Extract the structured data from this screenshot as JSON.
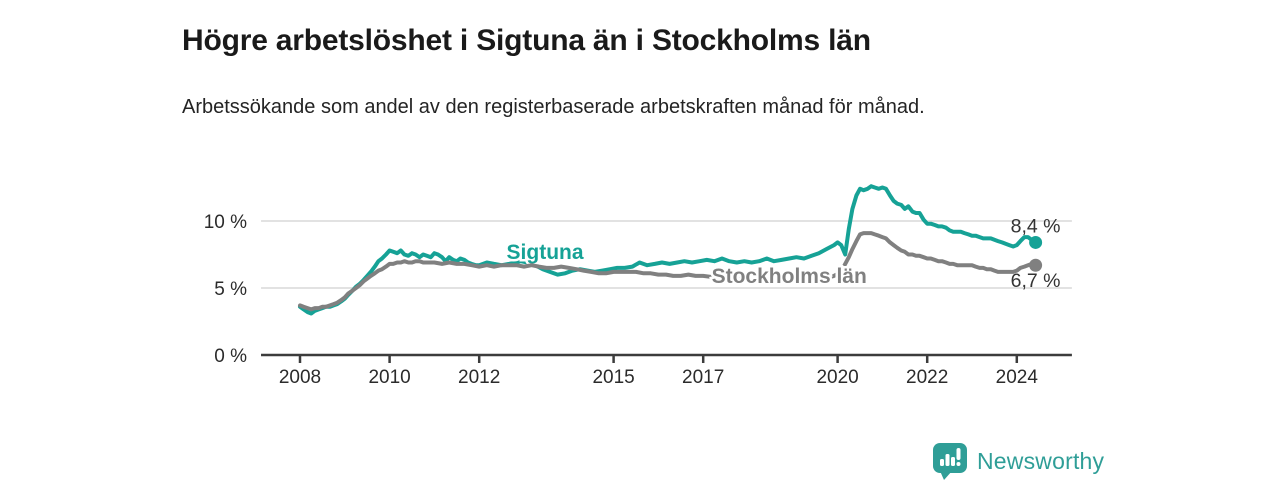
{
  "header": {
    "title": "Högre arbetslöshet i Sigtuna än i Stockholms län",
    "subtitle": "Arbetssökande som andel av den registerbaserade arbetskraften månad för månad."
  },
  "chart_data": {
    "type": "line",
    "title": "Högre arbetslöshet i Sigtuna än i Stockholms län",
    "subtitle": "Arbetssökande som andel av den registerbaserade arbetskraften månad för månad.",
    "unit": "%",
    "grid": true,
    "legend_position": "inline-labels",
    "x_axis": {
      "ticks": [
        2008,
        2010,
        2012,
        2015,
        2017,
        2020,
        2022,
        2024
      ],
      "range": [
        2007.13,
        2025.23
      ]
    },
    "y_axis": {
      "ticks": [
        0,
        5,
        10
      ],
      "tick_labels": [
        "0 %",
        "5 %",
        "10 %"
      ],
      "gridlines": [
        5,
        10
      ],
      "range": [
        0,
        13.2
      ]
    },
    "series": [
      {
        "name": "Sigtuna",
        "color": "#16a296",
        "end_label": "8,4 %",
        "end_value": 8.4,
        "label_anchor": [
          2013.47,
          7.16
        ],
        "points": [
          [
            2008.0,
            3.6
          ],
          [
            2008.08,
            3.4
          ],
          [
            2008.17,
            3.2
          ],
          [
            2008.25,
            3.1
          ],
          [
            2008.33,
            3.3
          ],
          [
            2008.42,
            3.4
          ],
          [
            2008.5,
            3.5
          ],
          [
            2008.58,
            3.6
          ],
          [
            2008.67,
            3.6
          ],
          [
            2008.75,
            3.7
          ],
          [
            2008.83,
            3.8
          ],
          [
            2008.92,
            4.0
          ],
          [
            2009.0,
            4.2
          ],
          [
            2009.08,
            4.5
          ],
          [
            2009.17,
            4.8
          ],
          [
            2009.25,
            5.1
          ],
          [
            2009.33,
            5.3
          ],
          [
            2009.42,
            5.6
          ],
          [
            2009.5,
            5.9
          ],
          [
            2009.58,
            6.2
          ],
          [
            2009.67,
            6.6
          ],
          [
            2009.75,
            7.0
          ],
          [
            2009.83,
            7.2
          ],
          [
            2009.92,
            7.5
          ],
          [
            2010.0,
            7.8
          ],
          [
            2010.08,
            7.7
          ],
          [
            2010.17,
            7.6
          ],
          [
            2010.25,
            7.8
          ],
          [
            2010.33,
            7.5
          ],
          [
            2010.42,
            7.4
          ],
          [
            2010.5,
            7.6
          ],
          [
            2010.58,
            7.5
          ],
          [
            2010.67,
            7.3
          ],
          [
            2010.75,
            7.5
          ],
          [
            2010.83,
            7.4
          ],
          [
            2010.92,
            7.3
          ],
          [
            2011.0,
            7.6
          ],
          [
            2011.08,
            7.5
          ],
          [
            2011.17,
            7.3
          ],
          [
            2011.25,
            7.0
          ],
          [
            2011.33,
            7.3
          ],
          [
            2011.42,
            7.1
          ],
          [
            2011.5,
            7.0
          ],
          [
            2011.58,
            7.2
          ],
          [
            2011.67,
            7.1
          ],
          [
            2011.75,
            6.9
          ],
          [
            2011.83,
            6.8
          ],
          [
            2011.92,
            6.7
          ],
          [
            2012.0,
            6.7
          ],
          [
            2012.17,
            6.9
          ],
          [
            2012.33,
            6.8
          ],
          [
            2012.5,
            6.7
          ],
          [
            2012.67,
            6.8
          ],
          [
            2012.83,
            6.9
          ],
          [
            2012.92,
            7.0
          ],
          [
            2013.08,
            6.9
          ],
          [
            2013.25,
            6.7
          ],
          [
            2013.42,
            6.4
          ],
          [
            2013.58,
            6.2
          ],
          [
            2013.75,
            6.0
          ],
          [
            2013.92,
            6.1
          ],
          [
            2014.08,
            6.3
          ],
          [
            2014.25,
            6.4
          ],
          [
            2014.42,
            6.3
          ],
          [
            2014.58,
            6.2
          ],
          [
            2014.75,
            6.3
          ],
          [
            2014.92,
            6.4
          ],
          [
            2015.08,
            6.5
          ],
          [
            2015.25,
            6.5
          ],
          [
            2015.42,
            6.6
          ],
          [
            2015.58,
            6.9
          ],
          [
            2015.75,
            6.7
          ],
          [
            2015.92,
            6.8
          ],
          [
            2016.08,
            6.9
          ],
          [
            2016.25,
            6.8
          ],
          [
            2016.42,
            6.9
          ],
          [
            2016.58,
            7.0
          ],
          [
            2016.75,
            6.9
          ],
          [
            2016.92,
            7.0
          ],
          [
            2017.08,
            7.1
          ],
          [
            2017.25,
            7.0
          ],
          [
            2017.42,
            7.2
          ],
          [
            2017.58,
            7.0
          ],
          [
            2017.75,
            6.9
          ],
          [
            2017.92,
            7.0
          ],
          [
            2018.08,
            6.9
          ],
          [
            2018.25,
            7.0
          ],
          [
            2018.42,
            7.2
          ],
          [
            2018.58,
            7.0
          ],
          [
            2018.75,
            7.1
          ],
          [
            2018.92,
            7.2
          ],
          [
            2019.08,
            7.3
          ],
          [
            2019.25,
            7.2
          ],
          [
            2019.42,
            7.4
          ],
          [
            2019.58,
            7.6
          ],
          [
            2019.75,
            7.9
          ],
          [
            2019.92,
            8.2
          ],
          [
            2020.0,
            8.4
          ],
          [
            2020.08,
            8.2
          ],
          [
            2020.17,
            7.5
          ],
          [
            2020.25,
            9.4
          ],
          [
            2020.33,
            10.9
          ],
          [
            2020.42,
            11.9
          ],
          [
            2020.5,
            12.4
          ],
          [
            2020.58,
            12.3
          ],
          [
            2020.67,
            12.4
          ],
          [
            2020.75,
            12.6
          ],
          [
            2020.83,
            12.5
          ],
          [
            2020.92,
            12.4
          ],
          [
            2021.0,
            12.5
          ],
          [
            2021.08,
            12.4
          ],
          [
            2021.17,
            11.9
          ],
          [
            2021.25,
            11.5
          ],
          [
            2021.33,
            11.3
          ],
          [
            2021.42,
            11.2
          ],
          [
            2021.5,
            10.9
          ],
          [
            2021.58,
            11.1
          ],
          [
            2021.67,
            10.7
          ],
          [
            2021.75,
            10.6
          ],
          [
            2021.83,
            10.6
          ],
          [
            2021.92,
            10.1
          ],
          [
            2022.0,
            9.8
          ],
          [
            2022.08,
            9.8
          ],
          [
            2022.17,
            9.7
          ],
          [
            2022.25,
            9.6
          ],
          [
            2022.33,
            9.6
          ],
          [
            2022.42,
            9.5
          ],
          [
            2022.5,
            9.3
          ],
          [
            2022.58,
            9.2
          ],
          [
            2022.67,
            9.2
          ],
          [
            2022.75,
            9.2
          ],
          [
            2022.83,
            9.1
          ],
          [
            2022.92,
            9.0
          ],
          [
            2023.0,
            8.9
          ],
          [
            2023.08,
            8.9
          ],
          [
            2023.17,
            8.8
          ],
          [
            2023.25,
            8.7
          ],
          [
            2023.33,
            8.7
          ],
          [
            2023.42,
            8.7
          ],
          [
            2023.5,
            8.6
          ],
          [
            2023.58,
            8.5
          ],
          [
            2023.67,
            8.4
          ],
          [
            2023.75,
            8.3
          ],
          [
            2023.83,
            8.2
          ],
          [
            2023.92,
            8.1
          ],
          [
            2024.0,
            8.2
          ],
          [
            2024.08,
            8.5
          ],
          [
            2024.17,
            8.8
          ],
          [
            2024.25,
            8.8
          ],
          [
            2024.33,
            8.6
          ],
          [
            2024.42,
            8.4
          ]
        ]
      },
      {
        "name": "Stockholms län",
        "color": "#808080",
        "end_label": "6,7 %",
        "end_value": 6.7,
        "label_anchor": [
          2018.92,
          5.37
        ],
        "points": [
          [
            2008.0,
            3.7
          ],
          [
            2008.08,
            3.6
          ],
          [
            2008.17,
            3.5
          ],
          [
            2008.25,
            3.4
          ],
          [
            2008.33,
            3.5
          ],
          [
            2008.42,
            3.5
          ],
          [
            2008.5,
            3.6
          ],
          [
            2008.58,
            3.6
          ],
          [
            2008.67,
            3.7
          ],
          [
            2008.75,
            3.8
          ],
          [
            2008.83,
            3.9
          ],
          [
            2008.92,
            4.1
          ],
          [
            2009.0,
            4.3
          ],
          [
            2009.08,
            4.6
          ],
          [
            2009.17,
            4.8
          ],
          [
            2009.25,
            5.0
          ],
          [
            2009.33,
            5.2
          ],
          [
            2009.42,
            5.5
          ],
          [
            2009.5,
            5.7
          ],
          [
            2009.58,
            5.9
          ],
          [
            2009.67,
            6.1
          ],
          [
            2009.75,
            6.3
          ],
          [
            2009.83,
            6.4
          ],
          [
            2009.92,
            6.6
          ],
          [
            2010.0,
            6.8
          ],
          [
            2010.08,
            6.8
          ],
          [
            2010.17,
            6.9
          ],
          [
            2010.25,
            6.9
          ],
          [
            2010.33,
            7.0
          ],
          [
            2010.42,
            6.9
          ],
          [
            2010.5,
            6.9
          ],
          [
            2010.58,
            7.0
          ],
          [
            2010.67,
            7.0
          ],
          [
            2010.75,
            6.9
          ],
          [
            2010.83,
            6.9
          ],
          [
            2010.92,
            6.9
          ],
          [
            2011.0,
            6.9
          ],
          [
            2011.17,
            6.8
          ],
          [
            2011.33,
            6.9
          ],
          [
            2011.5,
            6.8
          ],
          [
            2011.67,
            6.8
          ],
          [
            2011.83,
            6.7
          ],
          [
            2012.0,
            6.6
          ],
          [
            2012.17,
            6.7
          ],
          [
            2012.33,
            6.6
          ],
          [
            2012.5,
            6.7
          ],
          [
            2012.67,
            6.7
          ],
          [
            2012.83,
            6.7
          ],
          [
            2013.0,
            6.6
          ],
          [
            2013.17,
            6.7
          ],
          [
            2013.33,
            6.6
          ],
          [
            2013.5,
            6.5
          ],
          [
            2013.67,
            6.5
          ],
          [
            2013.83,
            6.6
          ],
          [
            2014.0,
            6.5
          ],
          [
            2014.17,
            6.4
          ],
          [
            2014.33,
            6.3
          ],
          [
            2014.5,
            6.2
          ],
          [
            2014.67,
            6.1
          ],
          [
            2014.83,
            6.1
          ],
          [
            2015.0,
            6.2
          ],
          [
            2015.17,
            6.2
          ],
          [
            2015.33,
            6.2
          ],
          [
            2015.5,
            6.2
          ],
          [
            2015.67,
            6.1
          ],
          [
            2015.83,
            6.1
          ],
          [
            2016.0,
            6.0
          ],
          [
            2016.17,
            6.0
          ],
          [
            2016.33,
            5.9
          ],
          [
            2016.5,
            5.9
          ],
          [
            2016.67,
            6.0
          ],
          [
            2016.83,
            5.9
          ],
          [
            2017.0,
            5.9
          ],
          [
            2017.25,
            5.8
          ],
          [
            2017.5,
            5.7
          ],
          [
            2017.75,
            5.7
          ],
          [
            2018.0,
            5.6
          ],
          [
            2018.25,
            5.6
          ],
          [
            2018.5,
            5.5
          ],
          [
            2018.75,
            5.5
          ],
          [
            2019.0,
            5.5
          ],
          [
            2019.25,
            5.5
          ],
          [
            2019.5,
            5.6
          ],
          [
            2019.75,
            5.7
          ],
          [
            2019.92,
            5.9
          ],
          [
            2020.08,
            6.2
          ],
          [
            2020.17,
            6.8
          ],
          [
            2020.25,
            7.3
          ],
          [
            2020.33,
            7.9
          ],
          [
            2020.42,
            8.5
          ],
          [
            2020.5,
            9.0
          ],
          [
            2020.58,
            9.1
          ],
          [
            2020.67,
            9.1
          ],
          [
            2020.75,
            9.1
          ],
          [
            2020.83,
            9.0
          ],
          [
            2020.92,
            8.9
          ],
          [
            2021.0,
            8.8
          ],
          [
            2021.08,
            8.7
          ],
          [
            2021.17,
            8.4
          ],
          [
            2021.25,
            8.2
          ],
          [
            2021.33,
            8.0
          ],
          [
            2021.42,
            7.8
          ],
          [
            2021.5,
            7.7
          ],
          [
            2021.58,
            7.5
          ],
          [
            2021.67,
            7.5
          ],
          [
            2021.75,
            7.4
          ],
          [
            2021.83,
            7.4
          ],
          [
            2021.92,
            7.3
          ],
          [
            2022.0,
            7.2
          ],
          [
            2022.08,
            7.2
          ],
          [
            2022.17,
            7.1
          ],
          [
            2022.25,
            7.0
          ],
          [
            2022.33,
            7.0
          ],
          [
            2022.42,
            6.9
          ],
          [
            2022.5,
            6.8
          ],
          [
            2022.58,
            6.8
          ],
          [
            2022.67,
            6.7
          ],
          [
            2022.75,
            6.7
          ],
          [
            2022.83,
            6.7
          ],
          [
            2022.92,
            6.7
          ],
          [
            2023.0,
            6.7
          ],
          [
            2023.08,
            6.6
          ],
          [
            2023.17,
            6.5
          ],
          [
            2023.25,
            6.5
          ],
          [
            2023.33,
            6.4
          ],
          [
            2023.42,
            6.4
          ],
          [
            2023.5,
            6.3
          ],
          [
            2023.58,
            6.2
          ],
          [
            2023.67,
            6.2
          ],
          [
            2023.75,
            6.2
          ],
          [
            2023.83,
            6.2
          ],
          [
            2023.92,
            6.2
          ],
          [
            2024.0,
            6.3
          ],
          [
            2024.08,
            6.5
          ],
          [
            2024.17,
            6.6
          ],
          [
            2024.25,
            6.7
          ],
          [
            2024.33,
            6.8
          ],
          [
            2024.42,
            6.7
          ]
        ]
      }
    ]
  },
  "footer": {
    "brand": "Newsworthy"
  },
  "colors": {
    "accent_teal": "#16a296",
    "series_gray": "#808080",
    "brand_teal": "#2f9e97",
    "grid": "#d9d9d9",
    "axis": "#3c3c3c",
    "text_dark": "#1a1a1a",
    "value_label": "#333333"
  }
}
